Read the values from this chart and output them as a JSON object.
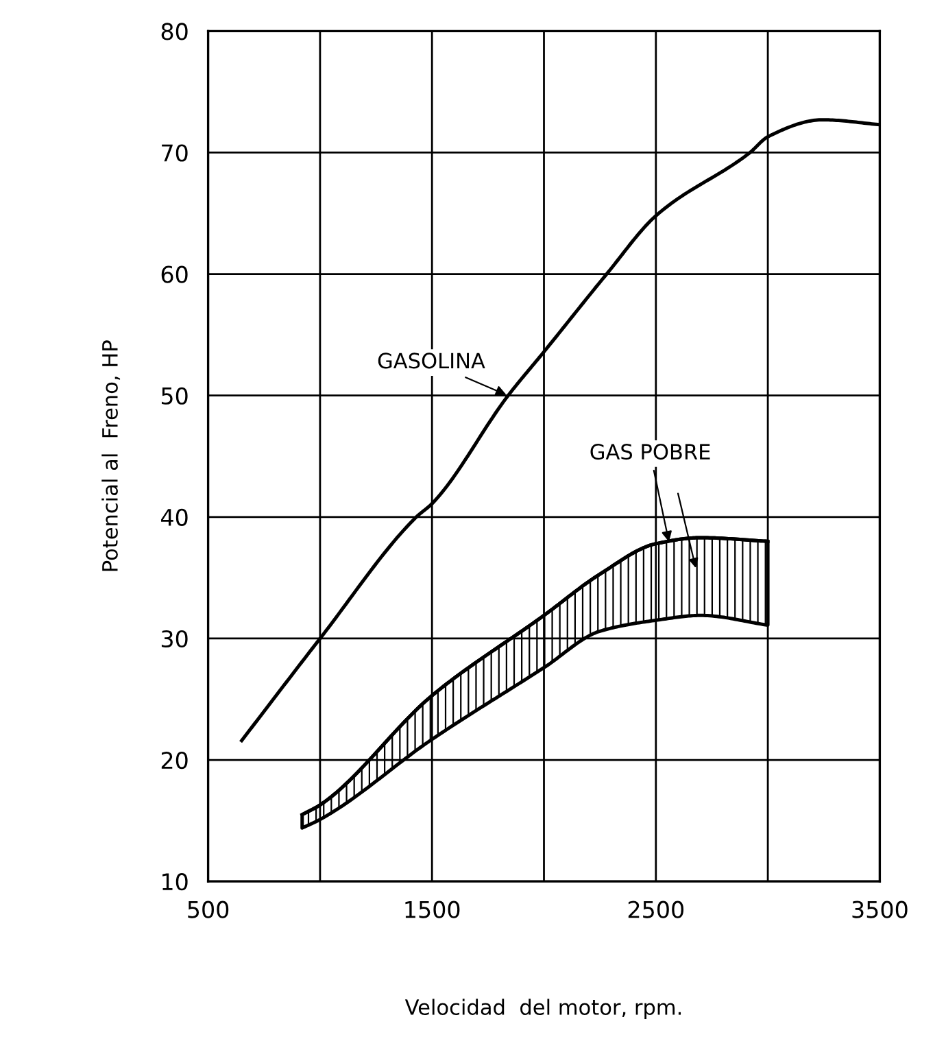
{
  "chart_data": {
    "type": "line",
    "xlabel": "Velocidad  del motor, rpm.",
    "ylabel": "Potencial al  Freno, HP",
    "xlim": [
      500,
      3500
    ],
    "ylim": [
      10,
      80
    ],
    "xticks": [
      500,
      {
        "value": 1000,
        "label": null
      },
      1500,
      {
        "value": 2000,
        "label": null
      },
      2500,
      {
        "value": 3000,
        "label": null
      },
      3500
    ],
    "yticks": [
      10,
      20,
      30,
      40,
      50,
      60,
      70,
      80
    ],
    "grid": true,
    "legend": false,
    "marker": "none",
    "line_style": "solid",
    "series": [
      {
        "name": "GASOLINA",
        "color": "#000000",
        "x": [
          650,
          1000,
          1430,
          1500,
          1840,
          2000,
          2280,
          2500,
          2920,
          3000,
          3245,
          3500
        ],
        "values": [
          21.6,
          30,
          40,
          41.1,
          50,
          53.6,
          60,
          64.8,
          70,
          71.3,
          72.7,
          72.3
        ]
      },
      {
        "name": "GAS POBRE",
        "color": "#000000",
        "x": [
          920,
          1000,
          1500,
          2000,
          2250,
          2500,
          2700,
          3000
        ],
        "values": [
          15.5,
          16.3,
          25.3,
          31.9,
          35.3,
          37.8,
          38.3,
          38.0
        ],
        "lower": [
          14.4,
          15.1,
          21.7,
          27.6,
          30.6,
          31.5,
          31.9,
          31.1
        ],
        "upper": [
          15.5,
          16.3,
          25.3,
          31.9,
          35.3,
          37.8,
          38.3,
          38.0
        ]
      }
    ]
  }
}
